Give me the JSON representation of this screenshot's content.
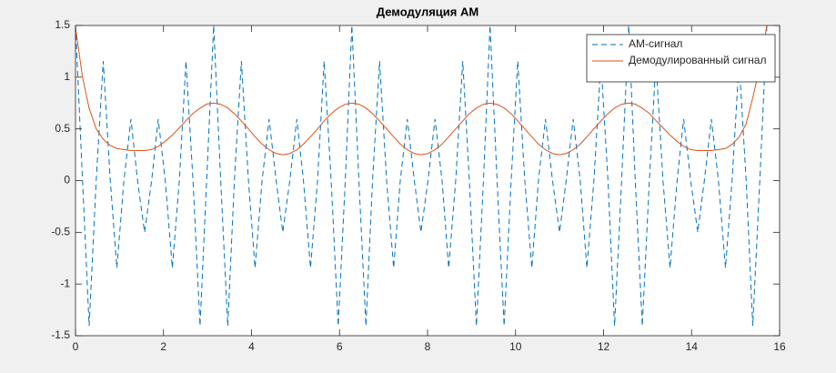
{
  "chart_data": {
    "type": "line",
    "title": "Демодуляция АМ",
    "x": [
      0,
      0.16,
      0.31,
      0.47,
      0.63,
      0.79,
      0.94,
      1.1,
      1.26,
      1.41,
      1.57,
      1.73,
      1.88,
      2.04,
      2.2,
      2.36,
      2.51,
      2.67,
      2.83,
      2.98,
      3.14,
      3.3,
      3.46,
      3.61,
      3.77,
      3.93,
      4.08,
      4.24,
      4.4,
      4.56,
      4.71,
      4.87,
      5.03,
      5.18,
      5.34,
      5.5,
      5.65,
      5.81,
      5.97,
      6.13,
      6.28,
      6.44,
      6.6,
      6.75,
      6.91,
      7.07,
      7.23,
      7.38,
      7.54,
      7.7,
      7.85,
      8.01,
      8.17,
      8.33,
      8.48,
      8.64,
      8.8,
      8.95,
      9.11,
      9.27,
      9.42,
      9.58,
      9.74,
      9.9,
      10.05,
      10.21,
      10.37,
      10.52,
      10.68,
      10.84,
      11.0,
      11.15,
      11.31,
      11.47,
      11.62,
      11.78,
      11.94,
      12.1,
      12.25,
      12.41,
      12.57,
      12.72,
      12.88,
      13.04,
      13.19,
      13.35,
      13.51,
      13.67,
      13.82,
      13.98,
      14.14,
      14.29,
      14.45,
      14.61,
      14.77,
      14.92,
      15.08,
      15.24,
      15.39,
      15.55,
      15.71
    ],
    "series": [
      {
        "name": "АМ-сигнал",
        "color": "#0072bd",
        "dashed": true,
        "values": [
          1.5,
          0,
          -1.405,
          0,
          1.155,
          0,
          -0.845,
          0,
          0.595,
          0,
          -0.5,
          0,
          0.595,
          0,
          -0.845,
          0,
          1.155,
          0,
          -1.405,
          0,
          1.5,
          0,
          -1.405,
          0,
          1.155,
          0,
          -0.845,
          0,
          0.595,
          0,
          -0.5,
          0,
          0.595,
          0,
          -0.845,
          0,
          1.155,
          0,
          -1.405,
          0,
          1.5,
          0,
          -1.405,
          0,
          1.155,
          0,
          -0.845,
          0,
          0.595,
          0,
          -0.5,
          0,
          0.595,
          0,
          -0.845,
          0,
          1.155,
          0,
          -1.405,
          0,
          1.5,
          0,
          -1.405,
          0,
          1.155,
          0,
          -0.845,
          0,
          0.595,
          0,
          -0.5,
          0,
          0.595,
          0,
          -0.845,
          0,
          1.155,
          0,
          -1.405,
          0,
          1.5,
          0,
          -1.405,
          0,
          1.155,
          0,
          -0.845,
          0,
          0.595,
          0,
          -0.5,
          0,
          0.595,
          0,
          -0.845,
          0,
          1.155,
          0,
          -1.405,
          0,
          1.5
        ]
      },
      {
        "name": "Демодулированный сигнал",
        "color": "#d95319",
        "dashed": false,
        "values": [
          1.48,
          1.0,
          0.7,
          0.5,
          0.4,
          0.34,
          0.31,
          0.3,
          0.29,
          0.29,
          0.29,
          0.3,
          0.33,
          0.38,
          0.44,
          0.51,
          0.58,
          0.65,
          0.7,
          0.74,
          0.75,
          0.738,
          0.702,
          0.647,
          0.577,
          0.5,
          0.423,
          0.353,
          0.298,
          0.262,
          0.25,
          0.262,
          0.298,
          0.353,
          0.423,
          0.5,
          0.577,
          0.647,
          0.702,
          0.738,
          0.75,
          0.738,
          0.702,
          0.647,
          0.577,
          0.5,
          0.423,
          0.353,
          0.298,
          0.262,
          0.25,
          0.262,
          0.298,
          0.353,
          0.423,
          0.5,
          0.577,
          0.647,
          0.702,
          0.738,
          0.75,
          0.738,
          0.702,
          0.647,
          0.577,
          0.5,
          0.423,
          0.353,
          0.298,
          0.262,
          0.25,
          0.262,
          0.298,
          0.353,
          0.423,
          0.5,
          0.577,
          0.647,
          0.702,
          0.738,
          0.75,
          0.74,
          0.7,
          0.65,
          0.58,
          0.51,
          0.44,
          0.38,
          0.33,
          0.3,
          0.29,
          0.29,
          0.29,
          0.3,
          0.31,
          0.35,
          0.42,
          0.55,
          0.8,
          1.1,
          1.5
        ]
      }
    ],
    "xlim": [
      0,
      16
    ],
    "xticks": [
      0,
      2,
      4,
      6,
      8,
      10,
      12,
      14,
      16
    ],
    "ylim": [
      -1.5,
      1.5
    ],
    "yticks": [
      -1.5,
      -1,
      -0.5,
      0,
      0.5,
      1,
      1.5
    ],
    "grid": false,
    "legend": "top-right"
  }
}
